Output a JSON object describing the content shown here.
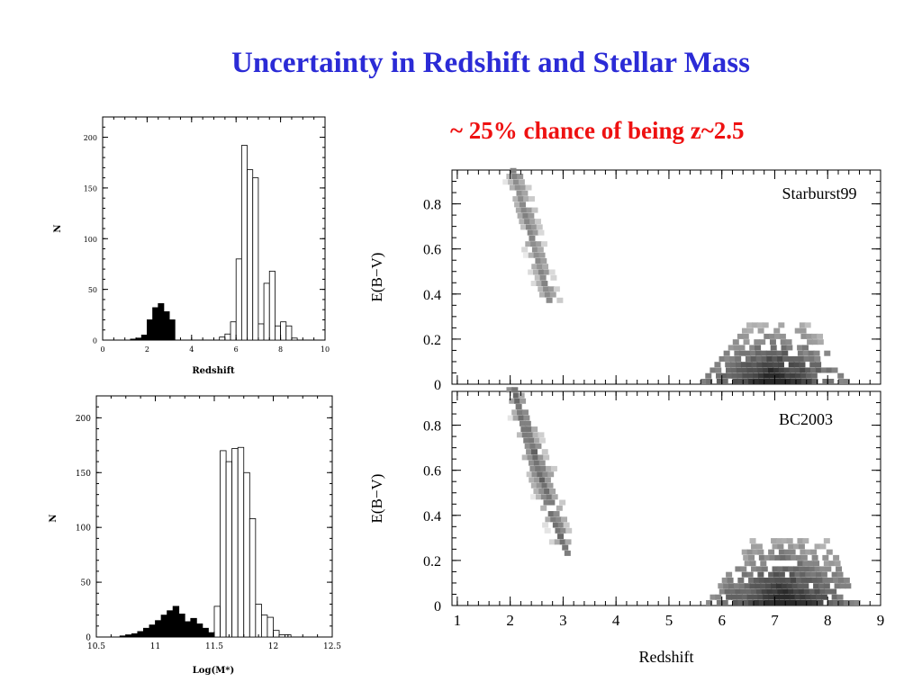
{
  "slide": {
    "title": "Uncertainty in Redshift and Stellar Mass",
    "subtitle": "~ 25% chance of being z~2.5"
  },
  "colors": {
    "title": "#2b2bd6",
    "subtitle": "#ee1111",
    "filled": "#000000",
    "open": "#ffffff"
  },
  "chart_data": [
    {
      "type": "bar",
      "name": "redshift-histogram",
      "xlabel": "Redshift",
      "ylabel": "N",
      "xlim": [
        0,
        10
      ],
      "ylim": [
        0,
        220
      ],
      "xticks": [
        "0",
        "2",
        "4",
        "6",
        "8",
        "10"
      ],
      "yticks": [
        "0",
        "50",
        "100",
        "150",
        "200"
      ],
      "grid": false,
      "bin_width": 0.25,
      "series": [
        {
          "fill": "black",
          "x": [
            1.25,
            1.5,
            1.75,
            2.0,
            2.25,
            2.5,
            2.75,
            3.0
          ],
          "values": [
            1,
            2,
            5,
            20,
            32,
            36,
            28,
            20
          ]
        },
        {
          "fill": "open",
          "x": [
            5.25,
            5.5,
            5.75,
            6.0,
            6.25,
            6.5,
            6.75,
            7.0,
            7.25,
            7.5,
            7.75,
            8.0,
            8.25,
            8.5
          ],
          "values": [
            3,
            6,
            18,
            80,
            192,
            168,
            160,
            16,
            56,
            68,
            14,
            18,
            14,
            2
          ]
        }
      ]
    },
    {
      "type": "bar",
      "name": "stellar-mass-histogram",
      "xlabel": "Log(M*)",
      "ylabel": "N",
      "xlim": [
        10.5,
        12.5
      ],
      "ylim": [
        0,
        220
      ],
      "xticks": [
        "10.5",
        "11",
        "11.5",
        "12",
        "12.5"
      ],
      "yticks": [
        "0",
        "50",
        "100",
        "150",
        "200"
      ],
      "grid": false,
      "bin_width": 0.05,
      "series": [
        {
          "fill": "black",
          "x": [
            10.7,
            10.75,
            10.8,
            10.85,
            10.9,
            10.95,
            11.0,
            11.05,
            11.1,
            11.15,
            11.2,
            11.25,
            11.3,
            11.35,
            11.4,
            11.45
          ],
          "values": [
            1,
            2,
            3,
            5,
            8,
            11,
            15,
            20,
            24,
            28,
            21,
            14,
            17,
            12,
            8,
            4
          ]
        },
        {
          "fill": "open",
          "x": [
            11.5,
            11.55,
            11.6,
            11.65,
            11.7,
            11.75,
            11.8,
            11.85,
            11.9,
            11.95,
            12.0,
            12.05,
            12.1
          ],
          "values": [
            28,
            170,
            160,
            172,
            173,
            150,
            108,
            30,
            20,
            18,
            6,
            2,
            2
          ]
        }
      ]
    },
    {
      "type": "heatmap",
      "name": "starburst99-panel",
      "label": "Starburst99",
      "ylabel": "E(B−V)",
      "xlim": [
        0.9,
        9
      ],
      "ylim": [
        0,
        0.95
      ],
      "yticks": [
        "0",
        "0.2",
        "0.4",
        "0.6",
        "0.8"
      ],
      "grid": false,
      "regions": [
        {
          "x": [
            2.0,
            2.7
          ],
          "y": [
            0.36,
            0.95
          ],
          "density": "medium"
        },
        {
          "x": [
            5.6,
            8.3
          ],
          "y": [
            0.0,
            0.26
          ],
          "density": "high"
        }
      ]
    },
    {
      "type": "heatmap",
      "name": "bc2003-panel",
      "label": "BC2003",
      "xlabel": "Redshift",
      "ylabel": "E(B−V)",
      "xlim": [
        0.9,
        9
      ],
      "ylim": [
        0,
        0.95
      ],
      "xticks": [
        "1",
        "2",
        "3",
        "4",
        "5",
        "6",
        "7",
        "8",
        "9"
      ],
      "yticks": [
        "0",
        "0.2",
        "0.4",
        "0.6",
        "0.8"
      ],
      "grid": false,
      "regions": [
        {
          "x": [
            2.0,
            3.0
          ],
          "y": [
            0.22,
            0.95
          ],
          "density": "medium"
        },
        {
          "x": [
            5.7,
            8.5
          ],
          "y": [
            0.0,
            0.3
          ],
          "density": "high"
        }
      ]
    }
  ]
}
